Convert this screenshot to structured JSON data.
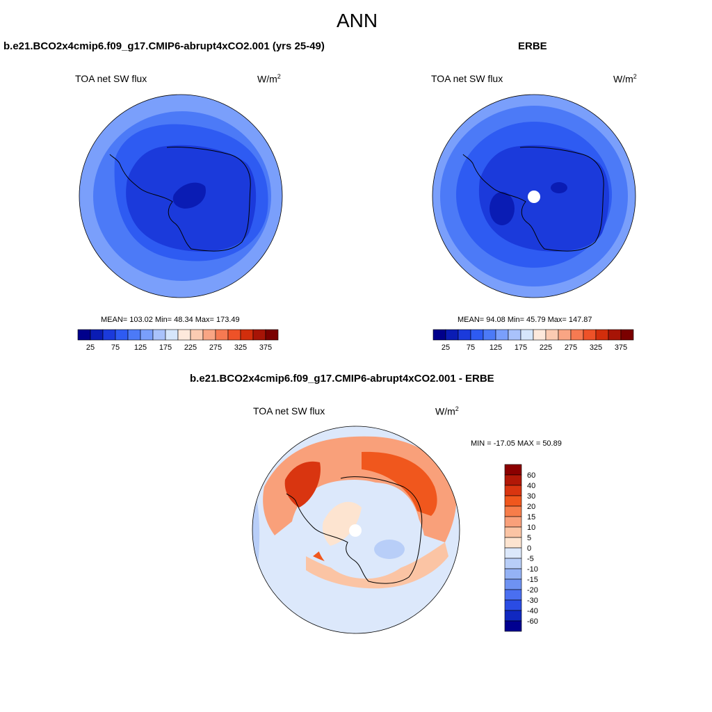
{
  "page_title": "ANN",
  "panels": [
    {
      "title": "b.e21.BCO2x4cmip6.f09_g17.CMIP6-abrupt4xCO2.001 (yrs 25-49)",
      "variable": "TOA net SW flux",
      "units_base": "W/m",
      "units_exp": "2",
      "stats": "MEAN= 103.02  Min=  48.34  Max= 173.49"
    },
    {
      "title": "ERBE",
      "variable": "TOA net SW flux",
      "units_base": "W/m",
      "units_exp": "2",
      "stats": "MEAN=  94.08  Min=  45.79  Max= 147.87"
    },
    {
      "title": "b.e21.BCO2x4cmip6.f09_g17.CMIP6-abrupt4xCO2.001 - ERBE",
      "variable": "TOA net SW flux",
      "units_base": "W/m",
      "units_exp": "2",
      "stats": "MIN = -17.05 MAX =  50.89"
    }
  ],
  "colorbar_abs": {
    "colors": [
      "#00008b",
      "#0a1cb4",
      "#1b3adb",
      "#2e5bf2",
      "#4c7af7",
      "#7a9ffb",
      "#a9c2fb",
      "#d6e6fb",
      "#fde9dc",
      "#fbcbb2",
      "#f9a584",
      "#f67a52",
      "#ee5228",
      "#d22e0c",
      "#a71406",
      "#7a0000"
    ],
    "ticks": [
      "25",
      "75",
      "125",
      "175",
      "225",
      "275",
      "325",
      "375"
    ]
  },
  "colorbar_diff": {
    "colors": [
      "#8b0000",
      "#b21807",
      "#d93510",
      "#f0571d",
      "#f77d4a",
      "#f9a07a",
      "#fbc4a4",
      "#fde4d0",
      "#dce8fb",
      "#b8cef8",
      "#94b2f5",
      "#6e92f2",
      "#4a6ff0",
      "#2a4ce4",
      "#1028c0",
      "#000090"
    ],
    "ticks": [
      "60",
      "40",
      "30",
      "20",
      "15",
      "10",
      "5",
      "0",
      "-5",
      "-10",
      "-15",
      "-20",
      "-30",
      "-40",
      "-60"
    ]
  }
}
